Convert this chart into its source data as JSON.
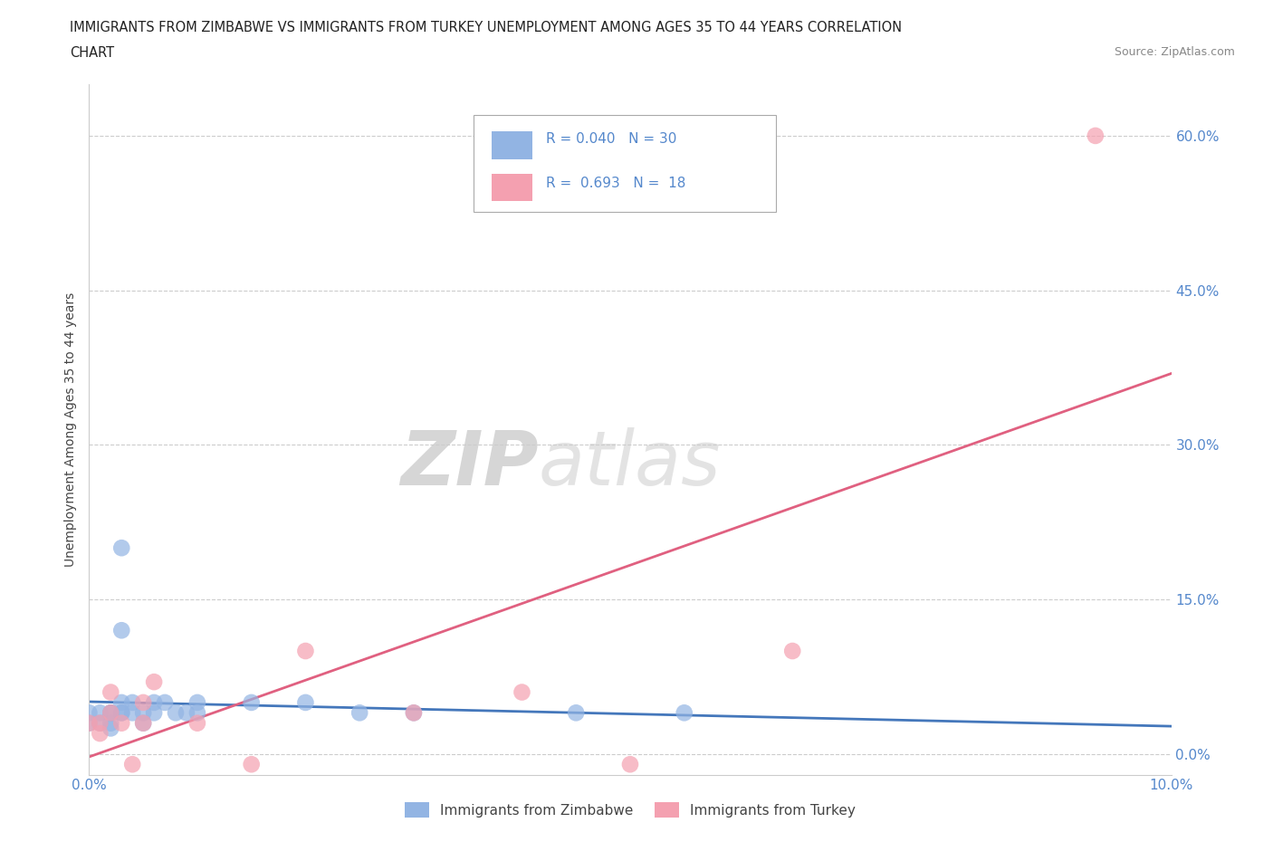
{
  "title_line1": "IMMIGRANTS FROM ZIMBABWE VS IMMIGRANTS FROM TURKEY UNEMPLOYMENT AMONG AGES 35 TO 44 YEARS CORRELATION",
  "title_line2": "CHART",
  "source": "Source: ZipAtlas.com",
  "ylabel_label": "Unemployment Among Ages 35 to 44 years",
  "xlim": [
    0.0,
    0.1
  ],
  "ylim": [
    -0.02,
    0.65
  ],
  "ytick_labels": [
    "0.0%",
    "15.0%",
    "30.0%",
    "45.0%",
    "60.0%"
  ],
  "ytick_values": [
    0.0,
    0.15,
    0.3,
    0.45,
    0.6
  ],
  "xtick_values": [
    0.0,
    0.02,
    0.04,
    0.06,
    0.08,
    0.1
  ],
  "xtick_labels": [
    "0.0%",
    "",
    "",
    "",
    "",
    "10.0%"
  ],
  "grid_color": "#cccccc",
  "background_color": "#ffffff",
  "zim_color": "#92b4e3",
  "turkey_color": "#f4a0b0",
  "zim_line_color": "#4477bb",
  "turkey_line_color": "#e06080",
  "zim_R": 0.04,
  "zim_N": 30,
  "turkey_R": 0.693,
  "turkey_N": 18,
  "zim_points_x": [
    0.0,
    0.0,
    0.001,
    0.001,
    0.002,
    0.002,
    0.002,
    0.002,
    0.003,
    0.003,
    0.003,
    0.003,
    0.003,
    0.004,
    0.004,
    0.005,
    0.005,
    0.006,
    0.006,
    0.007,
    0.008,
    0.009,
    0.01,
    0.01,
    0.015,
    0.02,
    0.025,
    0.03,
    0.045,
    0.055
  ],
  "zim_points_y": [
    0.03,
    0.04,
    0.03,
    0.04,
    0.03,
    0.04,
    0.025,
    0.04,
    0.05,
    0.04,
    0.2,
    0.12,
    0.04,
    0.04,
    0.05,
    0.03,
    0.04,
    0.04,
    0.05,
    0.05,
    0.04,
    0.04,
    0.04,
    0.05,
    0.05,
    0.05,
    0.04,
    0.04,
    0.04,
    0.04
  ],
  "turkey_points_x": [
    0.0,
    0.001,
    0.001,
    0.002,
    0.002,
    0.003,
    0.004,
    0.005,
    0.005,
    0.006,
    0.01,
    0.015,
    0.02,
    0.03,
    0.04,
    0.05,
    0.065,
    0.093
  ],
  "turkey_points_y": [
    0.03,
    0.02,
    0.03,
    0.04,
    0.06,
    0.03,
    -0.01,
    0.05,
    0.03,
    0.07,
    0.03,
    -0.01,
    0.1,
    0.04,
    0.06,
    -0.01,
    0.1,
    0.6
  ],
  "watermark_zip": "ZIP",
  "watermark_atlas": "atlas",
  "legend_items": [
    {
      "label": "Immigrants from Zimbabwe",
      "color": "#92b4e3"
    },
    {
      "label": "Immigrants from Turkey",
      "color": "#f4a0b0"
    }
  ]
}
